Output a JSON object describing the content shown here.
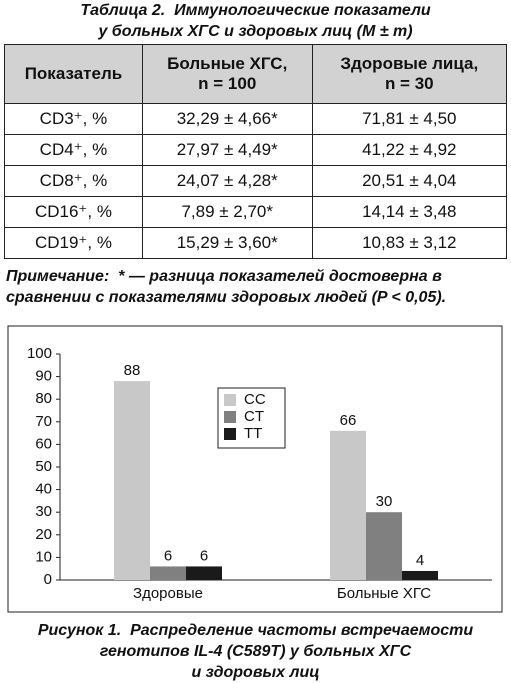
{
  "title": [
    "Таблица 2.  Иммунологические показатели",
    "у больных ХГС и здоровых лиц (M ± m)"
  ],
  "table": {
    "header": [
      [
        "Показатель"
      ],
      [
        "Больные ХГС,",
        "n = 100"
      ],
      [
        "Здоровые лица,",
        "n = 30"
      ]
    ],
    "rows": [
      [
        "CD3⁺, %",
        "32,29 ± 4,66*",
        "71,81 ± 4,50"
      ],
      [
        "CD4⁺, %",
        "27,97 ± 4,49*",
        "41,22 ± 4,92"
      ],
      [
        "CD8⁺, %",
        "24,07 ± 4,28*",
        "20,51 ± 4,04"
      ],
      [
        "CD16⁺, %",
        "7,89 ± 2,70*",
        "14,14 ± 3,48"
      ],
      [
        "CD19⁺, %",
        "15,29 ± 3,60*",
        "10,83 ± 3,12"
      ]
    ]
  },
  "note": [
    "Примечание:  * — разница показателей достоверна в",
    "сравнении с показателями здоровых людей (P < 0,05)."
  ],
  "chart_data": {
    "type": "bar",
    "categories": [
      "Здоровые",
      "Больные ХГС"
    ],
    "series": [
      {
        "name": "CC",
        "color": "#c8c8c8",
        "values": [
          88,
          66
        ]
      },
      {
        "name": "CT",
        "color": "#808080",
        "values": [
          6,
          30
        ]
      },
      {
        "name": "TT",
        "color": "#1a1a1a",
        "values": [
          6,
          4
        ]
      }
    ],
    "ylim": [
      0,
      100
    ],
    "yticks": [
      0,
      10,
      20,
      30,
      40,
      50,
      60,
      70,
      80,
      90,
      100
    ],
    "grid": false,
    "legend": "center"
  },
  "caption": [
    "Рисунок 1.  Распределение частоты встречаемости",
    "генотипов IL-4 (C589T) у больных ХГС",
    "и здоровых лиц"
  ]
}
